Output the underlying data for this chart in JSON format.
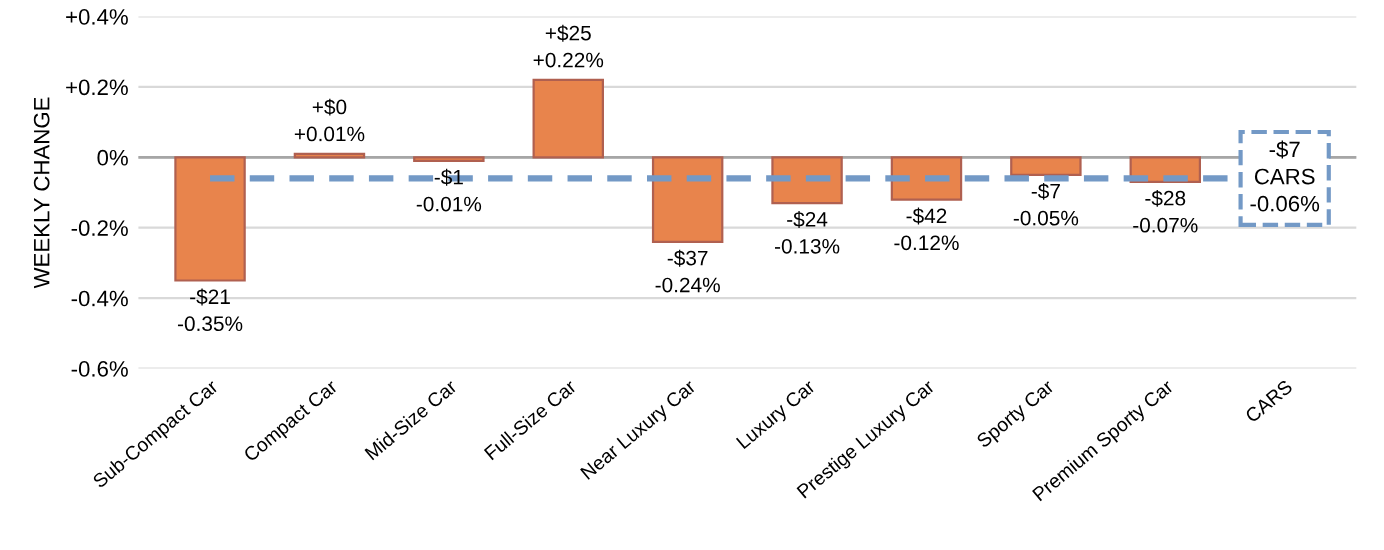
{
  "chart_data": {
    "type": "bar",
    "ylabel": "WEEKLY CHANGE",
    "categories": [
      "Sub-Compact Car",
      "Compact Car",
      "Mid-Size Car",
      "Full-Size Car",
      "Near Luxury Car",
      "Luxury Car",
      "Prestige Luxury Car",
      "Sporty Car",
      "Premium Sporty Car",
      "CARS"
    ],
    "values": [
      -0.35,
      0.01,
      -0.01,
      0.22,
      -0.24,
      -0.13,
      -0.12,
      -0.05,
      -0.07,
      null
    ],
    "value_labels": [
      "-$21\n-0.35%",
      "+$0\n+0.01%",
      "-$1\n-0.01%",
      "+$25\n+0.22%",
      "-$37\n-0.24%",
      "-$24\n-0.13%",
      "-$42\n-0.12%",
      "-$7\n-0.05%",
      "-$28\n-0.07%",
      null
    ],
    "color": "#e8844c",
    "ylim": [
      -0.6,
      0.4
    ],
    "yticks": [
      {
        "value": 0.4,
        "label": "+0.4%"
      },
      {
        "value": 0.2,
        "label": "+0.2%"
      },
      {
        "value": 0,
        "label": "0%"
      },
      {
        "value": -0.2,
        "label": "-0.2%"
      },
      {
        "value": -0.4,
        "label": "-0.4%"
      },
      {
        "value": -0.6,
        "label": "-0.6%"
      }
    ],
    "grid": "y",
    "ref_lines": [
      {
        "axis": "y",
        "value": -0.06,
        "label": "-$7\nCARS\n-0.06%",
        "color": "#7399c6",
        "line_style": "dashed"
      }
    ]
  }
}
